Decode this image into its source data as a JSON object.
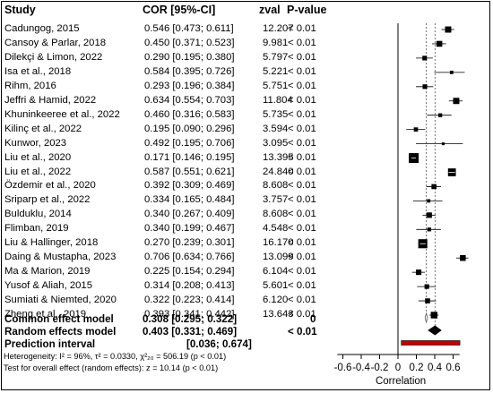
{
  "columns": {
    "study": "Study",
    "cor": "COR [95%-CI]",
    "zval": "zval",
    "pvalue": "P-value"
  },
  "studies": [
    {
      "study": "Cadungog, 2015",
      "cor": "0.546 [0.473; 0.611]",
      "zval": "12.207",
      "p": "< 0.01"
    },
    {
      "study": "Cansoy & Parlar, 2018",
      "cor": "0.450 [0.371; 0.523]",
      "zval": "9.981",
      "p": "< 0.01"
    },
    {
      "study": "Dilekçi & Limon, 2022",
      "cor": "0.290 [0.195; 0.380]",
      "zval": "5.797",
      "p": "< 0.01"
    },
    {
      "study": "Isa et al., 2018",
      "cor": "0.584 [0.395; 0.726]",
      "zval": "5.221",
      "p": "< 0.01"
    },
    {
      "study": "Rihm, 2016",
      "cor": "0.293 [0.196; 0.384]",
      "zval": "5.751",
      "p": "< 0.01"
    },
    {
      "study": "Jeffri & Hamid, 2022",
      "cor": "0.634 [0.554; 0.703]",
      "zval": "11.804",
      "p": "< 0.01"
    },
    {
      "study": "Khuninkeeree et al., 2022",
      "cor": "0.460 [0.316; 0.583]",
      "zval": "5.735",
      "p": "< 0.01"
    },
    {
      "study": "Kilinç et al., 2022",
      "cor": "0.195 [0.090; 0.296]",
      "zval": "3.594",
      "p": "< 0.01"
    },
    {
      "study": "Kunwor, 2023",
      "cor": "0.492 [0.195; 0.706]",
      "zval": "3.095",
      "p": "< 0.01"
    },
    {
      "study": "Liu et al., 2020",
      "cor": "0.171 [0.146; 0.195]",
      "zval": "13.395",
      "p": "< 0.01"
    },
    {
      "study": "Liu et al., 2022",
      "cor": "0.587 [0.551; 0.621]",
      "zval": "24.840",
      "p": "< 0.01"
    },
    {
      "study": "Özdemir et al., 2020",
      "cor": "0.392 [0.309; 0.469]",
      "zval": "8.608",
      "p": "< 0.01"
    },
    {
      "study": "Sriparp et al., 2022",
      "cor": "0.334 [0.165; 0.484]",
      "zval": "3.757",
      "p": "< 0.01"
    },
    {
      "study": "Bulduklu, 2014",
      "cor": "0.340 [0.267; 0.409]",
      "zval": "8.608",
      "p": "< 0.01"
    },
    {
      "study": "Flimban, 2019",
      "cor": "0.340 [0.199; 0.467]",
      "zval": "4.548",
      "p": "< 0.01"
    },
    {
      "study": "Liu & Hallinger, 2018",
      "cor": "0.270 [0.239; 0.301]",
      "zval": "16.170",
      "p": "< 0.01"
    },
    {
      "study": "Daing & Mustapha, 2023",
      "cor": "0.706 [0.634; 0.766]",
      "zval": "13.099",
      "p": "< 0.01"
    },
    {
      "study": "Ma & Marion, 2019",
      "cor": "0.225 [0.154; 0.294]",
      "zval": "6.104",
      "p": "< 0.01"
    },
    {
      "study": "Yusof & Aliah, 2015",
      "cor": "0.314 [0.208; 0.413]",
      "zval": "5.601",
      "p": "< 0.01"
    },
    {
      "study": "Sumiati & Niemted, 2020",
      "cor": "0.322 [0.223; 0.414]",
      "zval": "6.120",
      "p": "< 0.01"
    },
    {
      "study": "Zheng et al., 2019",
      "cor": "0.393 [0.341; 0.442]",
      "zval": "13.643",
      "p": "< 0.01"
    }
  ],
  "summary": {
    "common": {
      "label": "Common effect model",
      "cor": "0.308 [0.295; 0.322]",
      "zval": "0"
    },
    "random": {
      "label": "Random effects model",
      "cor": "0.403 [0.331; 0.469]",
      "p": "< 0.01"
    },
    "prediction": {
      "label": "Prediction interval",
      "cor": "[0.036; 0.674]"
    }
  },
  "heterogeneity_text": "Heterogeneity: I² = 96%, τ² = 0.0330, χ²₂₀ = 506.19 (p < 0.01)",
  "overall_test_text": "Test for overall effect (random effects): z = 10.14 (p < 0.01)",
  "chart_data": {
    "type": "forest",
    "xlabel": "Correlation",
    "xlim": [
      -0.7,
      0.7
    ],
    "ticks": [
      -0.6,
      -0.4,
      -0.2,
      0,
      0.2,
      0.4,
      0.6
    ],
    "tick_labels": [
      "-0.6",
      "-0.4",
      "-0.2",
      "0",
      "0.2",
      "0.4",
      "0.6"
    ],
    "points": [
      {
        "est": 0.546,
        "lo": 0.473,
        "hi": 0.611,
        "weight": 0.55
      },
      {
        "est": 0.45,
        "lo": 0.371,
        "hi": 0.523,
        "weight": 0.5
      },
      {
        "est": 0.29,
        "lo": 0.195,
        "hi": 0.38,
        "weight": 0.35
      },
      {
        "est": 0.584,
        "lo": 0.395,
        "hi": 0.726,
        "weight": 0.2
      },
      {
        "est": 0.293,
        "lo": 0.196,
        "hi": 0.384,
        "weight": 0.35
      },
      {
        "est": 0.634,
        "lo": 0.554,
        "hi": 0.703,
        "weight": 0.55
      },
      {
        "est": 0.46,
        "lo": 0.316,
        "hi": 0.583,
        "weight": 0.25
      },
      {
        "est": 0.195,
        "lo": 0.09,
        "hi": 0.296,
        "weight": 0.3
      },
      {
        "est": 0.492,
        "lo": 0.195,
        "hi": 0.706,
        "weight": 0.12
      },
      {
        "est": 0.171,
        "lo": 0.146,
        "hi": 0.195,
        "weight": 1.0
      },
      {
        "est": 0.587,
        "lo": 0.551,
        "hi": 0.621,
        "weight": 0.75
      },
      {
        "est": 0.392,
        "lo": 0.309,
        "hi": 0.469,
        "weight": 0.4
      },
      {
        "est": 0.334,
        "lo": 0.165,
        "hi": 0.484,
        "weight": 0.2
      },
      {
        "est": 0.34,
        "lo": 0.267,
        "hi": 0.409,
        "weight": 0.45
      },
      {
        "est": 0.34,
        "lo": 0.199,
        "hi": 0.467,
        "weight": 0.25
      },
      {
        "est": 0.27,
        "lo": 0.239,
        "hi": 0.301,
        "weight": 0.9
      },
      {
        "est": 0.706,
        "lo": 0.634,
        "hi": 0.766,
        "weight": 0.5
      },
      {
        "est": 0.225,
        "lo": 0.154,
        "hi": 0.294,
        "weight": 0.45
      },
      {
        "est": 0.314,
        "lo": 0.208,
        "hi": 0.413,
        "weight": 0.35
      },
      {
        "est": 0.322,
        "lo": 0.223,
        "hi": 0.414,
        "weight": 0.4
      },
      {
        "est": 0.393,
        "lo": 0.341,
        "hi": 0.442,
        "weight": 0.6
      }
    ],
    "common_effect": {
      "est": 0.308,
      "lo": 0.295,
      "hi": 0.322
    },
    "random_effects": {
      "est": 0.403,
      "lo": 0.331,
      "hi": 0.469
    },
    "prediction_interval": {
      "lo": 0.036,
      "hi": 0.674
    },
    "colors": {
      "box": "#000000",
      "ci": "#000000",
      "prediction": "#c00000",
      "reference": "#000000"
    }
  }
}
